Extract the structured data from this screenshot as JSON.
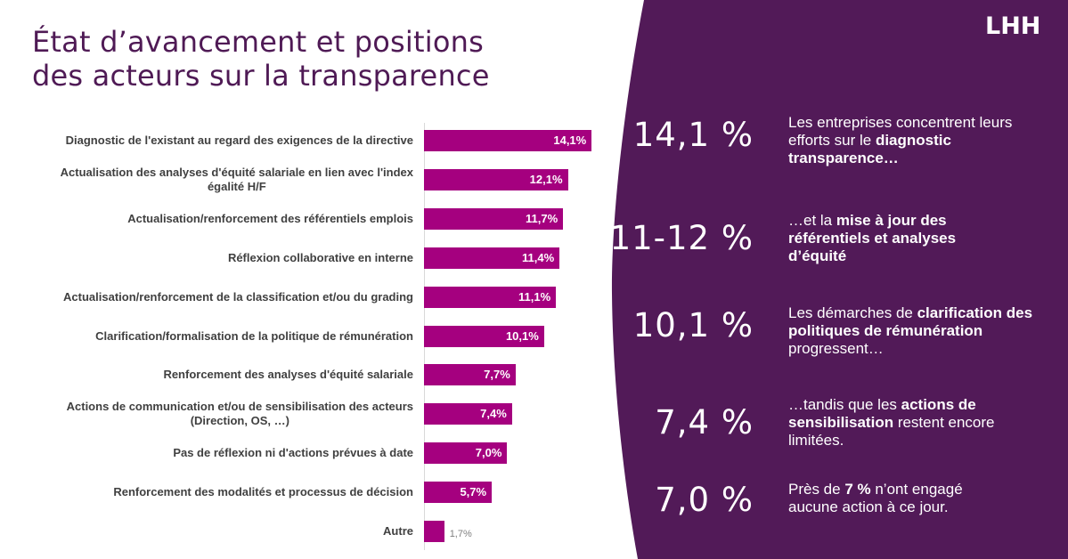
{
  "title": {
    "line1": "État d’avancement et positions",
    "line2": "des acteurs sur la transparence"
  },
  "logo": "LHH",
  "colors": {
    "title": "#4f1a55",
    "panel": "#521a58",
    "bar": "#a5007f",
    "label": "#404040"
  },
  "chart_data": {
    "type": "bar",
    "orientation": "horizontal",
    "title": "",
    "xlabel": "",
    "ylabel": "",
    "unit": "%",
    "xlim": [
      0,
      15
    ],
    "grid": false,
    "categories": [
      "Diagnostic de l'existant au regard des exigences de la directive",
      "Actualisation des analyses d'équité salariale en lien avec l'index égalité H/F",
      "Actualisation/renforcement des référentiels emplois",
      "Réflexion collaborative en interne",
      "Actualisation/renforcement de la classification et/ou du grading",
      "Clarification/formalisation de la politique de rémunération",
      "Renforcement des analyses d'équité salariale",
      "Actions de communication et/ou de sensibilisation des acteurs (Direction, OS, …)",
      "Pas de réflexion ni d'actions prévues à date",
      "Renforcement des modalités et processus de décision",
      "Autre"
    ],
    "category_lines": [
      [
        "Diagnostic de l'existant au regard des exigences de la directive"
      ],
      [
        "Actualisation des analyses d'équité salariale en lien avec l'index",
        "égalité H/F"
      ],
      [
        "Actualisation/renforcement des référentiels emplois"
      ],
      [
        "Réflexion collaborative en interne"
      ],
      [
        "Actualisation/renforcement de la classification et/ou du grading"
      ],
      [
        "Clarification/formalisation de la politique de rémunération"
      ],
      [
        "Renforcement des analyses d'équité salariale"
      ],
      [
        "Actions de communication et/ou de sensibilisation des acteurs",
        "(Direction, OS, …)"
      ],
      [
        "Pas de réflexion ni d'actions prévues à date"
      ],
      [
        "Renforcement des modalités et processus de décision"
      ],
      [
        "Autre"
      ]
    ],
    "values": [
      14.1,
      12.1,
      11.7,
      11.4,
      11.1,
      10.1,
      7.7,
      7.4,
      7.0,
      5.7,
      1.7
    ],
    "value_labels": [
      "14,1%",
      "12,1%",
      "11,7%",
      "11,4%",
      "11,1%",
      "10,1%",
      "7,7%",
      "7,4%",
      "7,0%",
      "5,7%",
      "1,7%"
    ]
  },
  "highlights": [
    {
      "number": "14,1 %",
      "text": [
        {
          "t": "Les entreprises concentrent leurs efforts sur le ",
          "b": false
        },
        {
          "t": "diagnostic transparence…",
          "b": true
        }
      ]
    },
    {
      "number": "11-12 %",
      "text": [
        {
          "t": "…et la ",
          "b": false
        },
        {
          "t": "mise à jour des référentiels et analyses d’équité",
          "b": true
        }
      ]
    },
    {
      "number": "10,1 %",
      "text": [
        {
          "t": "Les démarches de ",
          "b": false
        },
        {
          "t": "clarification des politiques de rémunération",
          "b": true
        },
        {
          "t": " progressent…",
          "b": false
        }
      ]
    },
    {
      "number": "7,4 %",
      "text": [
        {
          "t": "…tandis que  les ",
          "b": false
        },
        {
          "t": "actions de sensibilisation",
          "b": true
        },
        {
          "t": " restent encore limitées.",
          "b": false
        }
      ]
    },
    {
      "number": "7,0 %",
      "text": [
        {
          "t": "Près de ",
          "b": false
        },
        {
          "t": "7 %",
          "b": true
        },
        {
          "t": " n’ont engagé aucune action à ce jour.",
          "b": false
        }
      ]
    }
  ]
}
